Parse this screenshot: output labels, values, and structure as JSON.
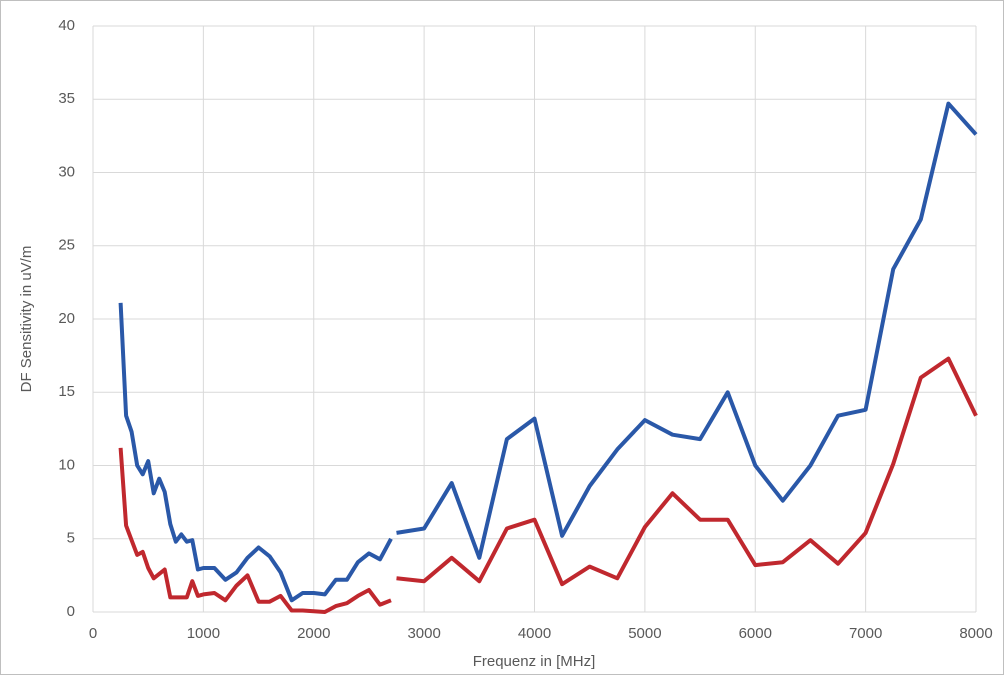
{
  "chart_data": {
    "type": "line",
    "xlabel": "Frequenz in [MHz]",
    "ylabel": "DF Sensitivity in uV/m",
    "x": [
      250,
      300,
      350,
      400,
      450,
      500,
      550,
      600,
      650,
      700,
      750,
      800,
      850,
      900,
      950,
      1000,
      1100,
      1200,
      1300,
      1400,
      1500,
      1600,
      1700,
      1800,
      1900,
      2000,
      2100,
      2200,
      2300,
      2400,
      2500,
      2600,
      2700,
      2725,
      2750,
      3000,
      3250,
      3500,
      3750,
      4000,
      4250,
      4500,
      4750,
      5000,
      5250,
      5500,
      5750,
      6000,
      6250,
      6500,
      6750,
      7000,
      7250,
      7500,
      7750,
      8000
    ],
    "series": [
      {
        "color": "#2a58a8",
        "values": [
          21.1,
          13.4,
          12.3,
          10.0,
          9.4,
          10.3,
          8.1,
          9.1,
          8.2,
          6.0,
          4.8,
          5.3,
          4.8,
          4.9,
          2.9,
          3.0,
          3.0,
          2.2,
          2.7,
          3.7,
          4.4,
          3.8,
          2.7,
          0.8,
          1.3,
          1.3,
          1.2,
          2.2,
          2.2,
          3.4,
          4.0,
          3.6,
          5.0,
          null,
          5.4,
          5.7,
          8.8,
          3.7,
          11.8,
          13.2,
          5.2,
          8.6,
          11.1,
          13.1,
          12.1,
          11.8,
          15.0,
          10.0,
          7.6,
          10.0,
          13.4,
          13.8,
          23.4,
          26.8,
          34.7,
          32.6
        ]
      },
      {
        "color": "#c0282e",
        "values": [
          11.2,
          5.9,
          4.9,
          3.9,
          4.1,
          3.0,
          2.3,
          2.6,
          2.9,
          1.0,
          1.0,
          1.0,
          1.0,
          2.1,
          1.1,
          1.2,
          1.3,
          0.8,
          1.8,
          2.5,
          0.7,
          0.7,
          1.1,
          0.1,
          0.1,
          0.05,
          0.0,
          0.4,
          0.6,
          1.1,
          1.5,
          0.5,
          0.8,
          null,
          2.3,
          2.1,
          3.7,
          2.1,
          5.7,
          6.3,
          1.9,
          3.1,
          2.3,
          5.8,
          8.1,
          6.3,
          6.3,
          3.2,
          3.4,
          4.9,
          3.3,
          5.4,
          10.1,
          16.0,
          17.3,
          13.4
        ]
      }
    ],
    "xlim": [
      0,
      8000
    ],
    "xticks": [
      0,
      1000,
      2000,
      3000,
      4000,
      5000,
      6000,
      7000,
      8000
    ],
    "ylim": [
      0,
      40
    ],
    "yticks": [
      0,
      5,
      10,
      15,
      20,
      25,
      30,
      35,
      40
    ],
    "grid": true
  }
}
